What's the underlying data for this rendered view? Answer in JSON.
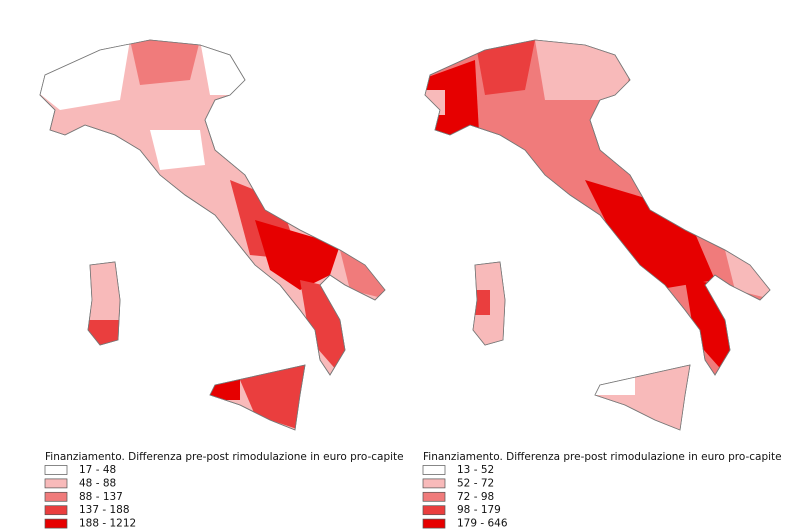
{
  "maps": [
    {
      "legend": {
        "title": "Finanziamento. Differenza pre-post rimodulazione in euro pro-capite",
        "classes": [
          {
            "label": "17 - 48",
            "color": "#ffffff"
          },
          {
            "label": "48 - 88",
            "color": "#f8baba"
          },
          {
            "label": "88 - 137",
            "color": "#f07b7b"
          },
          {
            "label": "137 - 188",
            "color": "#ea3e3e"
          },
          {
            "label": "188 - 1212",
            "color": "#e60000"
          }
        ]
      }
    },
    {
      "legend": {
        "title": "Finanziamento. Differenza pre-post rimodulazione in euro pro-capite",
        "classes": [
          {
            "label": "13 - 52",
            "color": "#ffffff"
          },
          {
            "label": "52 - 72",
            "color": "#f8baba"
          },
          {
            "label": "72 - 98",
            "color": "#f07b7b"
          },
          {
            "label": "98 - 179",
            "color": "#ea3e3e"
          },
          {
            "label": "179 - 646",
            "color": "#e60000"
          }
        ]
      }
    }
  ]
}
